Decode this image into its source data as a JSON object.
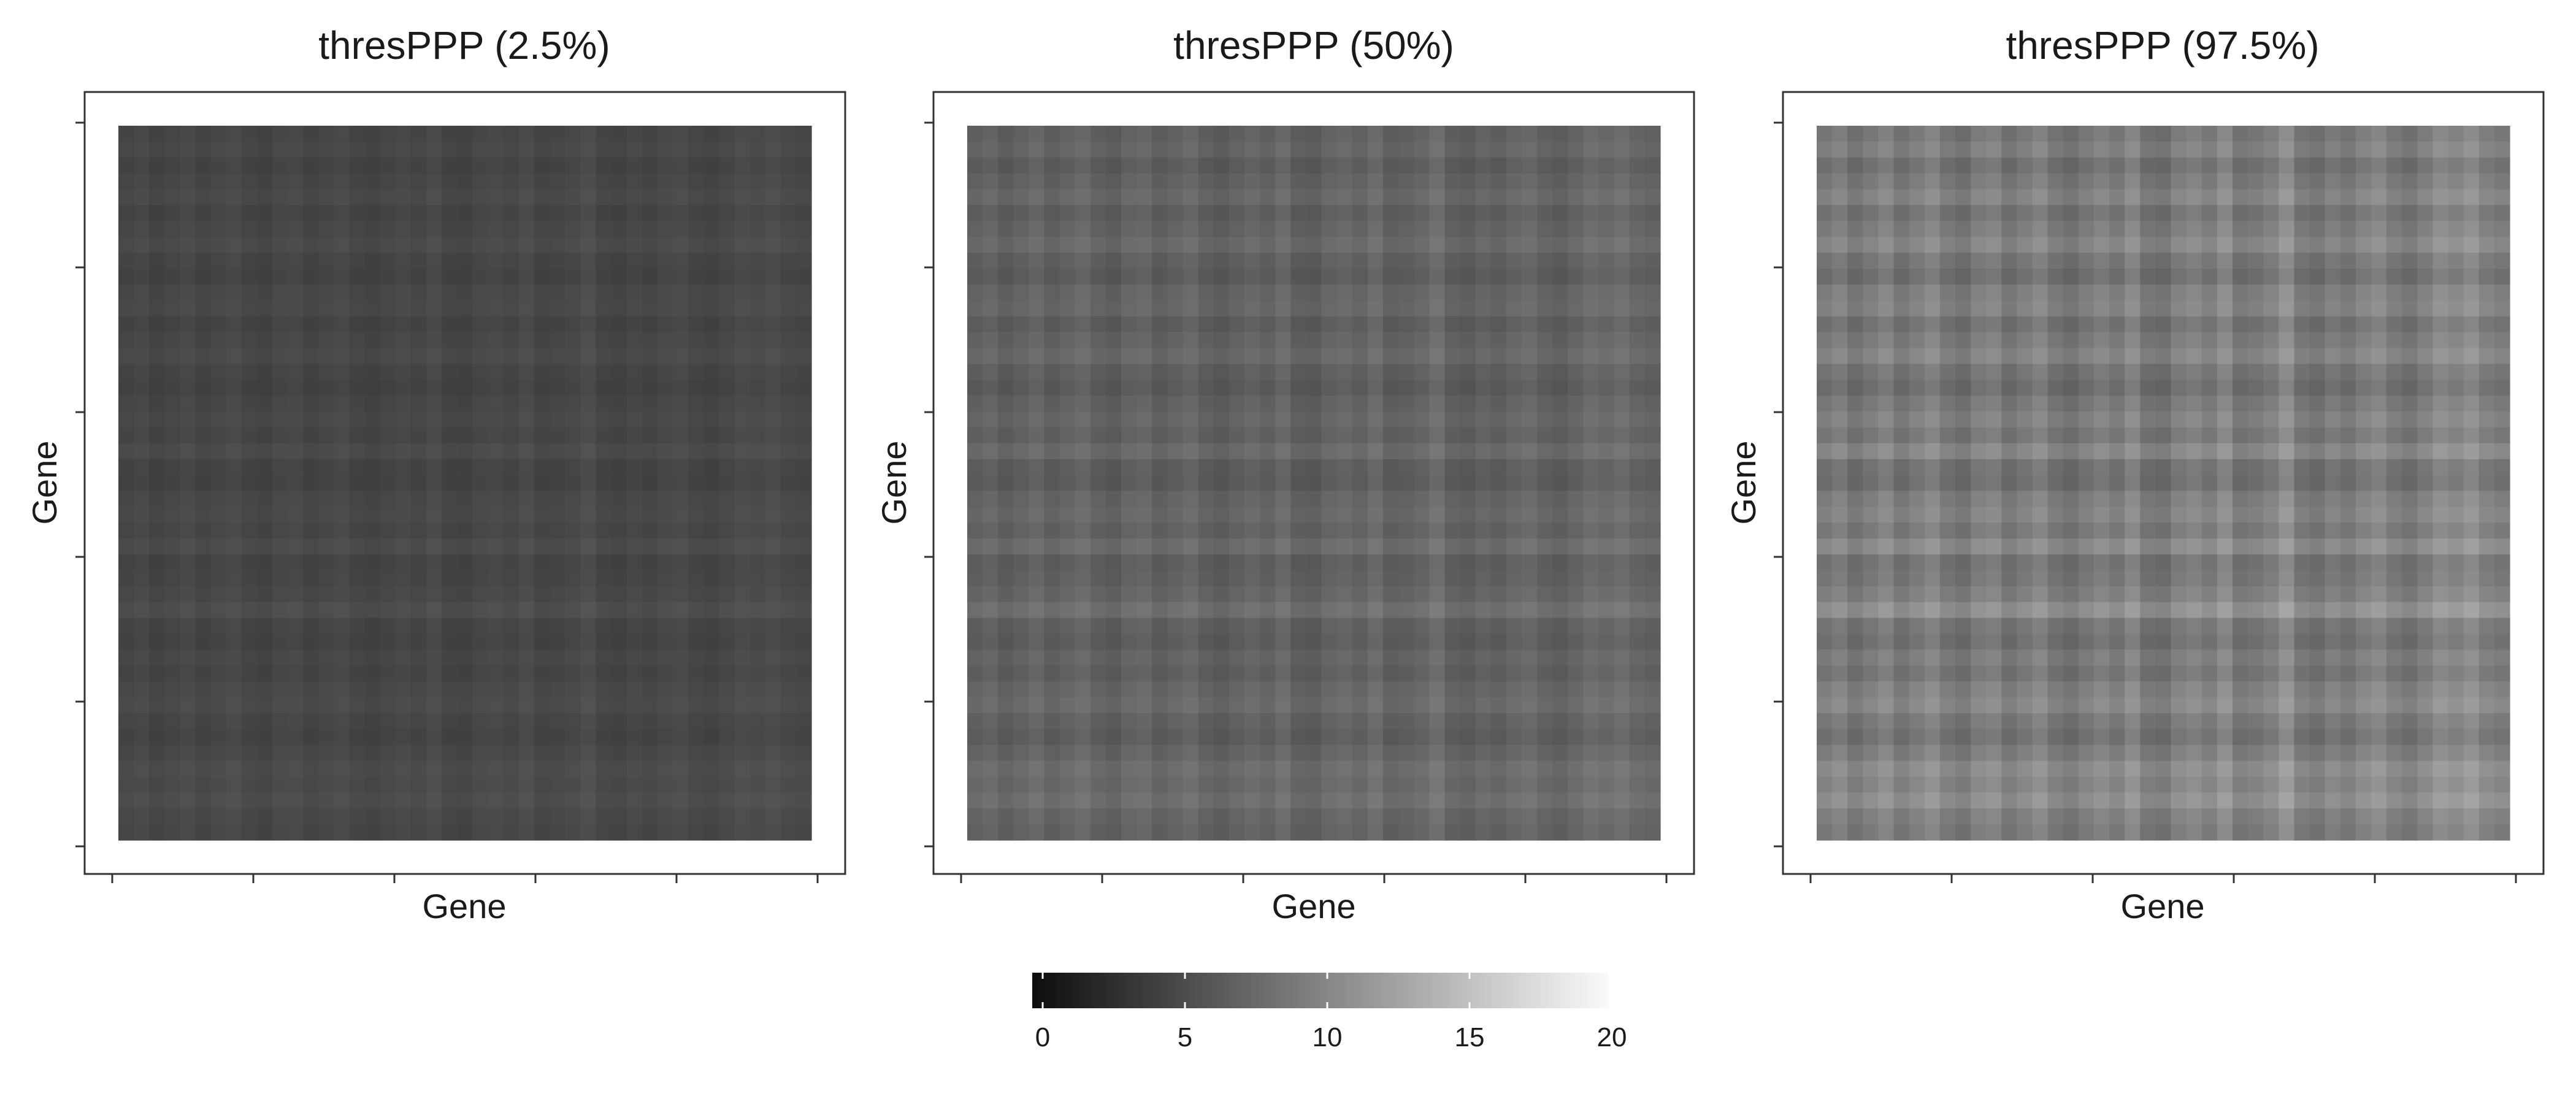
{
  "chart_data": {
    "type": "heatmap",
    "grid_size": 45,
    "panels": [
      {
        "title": "thresPPP (2.5%)",
        "xlabel": "Gene",
        "ylabel": "Gene",
        "scale": 0.55,
        "base": 2.8
      },
      {
        "title": "thresPPP (50%)",
        "xlabel": "Gene",
        "ylabel": "Gene",
        "scale": 1.0,
        "base": 3.5
      },
      {
        "title": "thresPPP (97.5%)",
        "xlabel": "Gene",
        "ylabel": "Gene",
        "scale": 1.65,
        "base": 3.2
      }
    ],
    "gene_profile": [
      2.4,
      3.0,
      1.9,
      2.6,
      3.3,
      2.1,
      2.8,
      3.5,
      2.3,
      1.8,
      2.9,
      3.2,
      2.0,
      2.7,
      3.4,
      2.2,
      1.7,
      2.5,
      3.1,
      2.4,
      3.6,
      2.0,
      1.8,
      2.9,
      3.3,
      2.6,
      3.8,
      2.1,
      2.4,
      3.0,
      4.2,
      2.3,
      1.9,
      2.8,
      2.2,
      3.1,
      3.6,
      2.5,
      2.0,
      2.9,
      3.9,
      3.4,
      4.1,
      3.0,
      2.6
    ],
    "color_scale": {
      "min": 0,
      "max": 20,
      "ticks": [
        "0",
        "5",
        "10",
        "15",
        "20"
      ],
      "low_color": "#0d0d0d",
      "high_color": "#fafafa"
    }
  }
}
